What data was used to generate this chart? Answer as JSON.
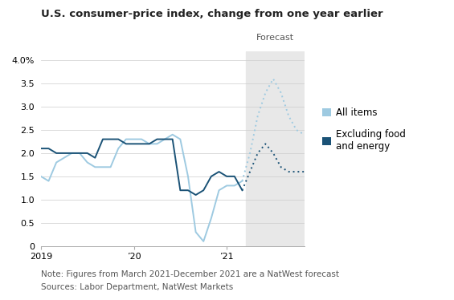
{
  "title": "U.S. consumer-price index, change from one year earlier",
  "note": "Note: Figures from March 2021-December 2021 are a NatWest forecast",
  "sources": "Sources: Labor Department, NatWest Markets",
  "forecast_label": "Forecast",
  "forecast_start": 26.5,
  "background_color": "#ffffff",
  "forecast_bg_color": "#e8e8e8",
  "all_items_color": "#9ecae1",
  "excl_color": "#1a5276",
  "legend_all_items": "All items",
  "legend_excl": "Excluding food\nand energy",
  "all_items_solid": [
    [
      0,
      1.5
    ],
    [
      1,
      1.4
    ],
    [
      2,
      1.8
    ],
    [
      3,
      1.9
    ],
    [
      4,
      2.0
    ],
    [
      5,
      2.0
    ],
    [
      6,
      1.8
    ],
    [
      7,
      1.7
    ],
    [
      8,
      1.7
    ],
    [
      9,
      1.7
    ],
    [
      10,
      2.1
    ],
    [
      11,
      2.3
    ],
    [
      12,
      2.3
    ],
    [
      13,
      2.3
    ],
    [
      14,
      2.2
    ],
    [
      15,
      2.2
    ],
    [
      16,
      2.3
    ],
    [
      17,
      2.4
    ],
    [
      18,
      2.3
    ],
    [
      19,
      1.5
    ],
    [
      20,
      0.3
    ],
    [
      21,
      0.1
    ],
    [
      22,
      0.6
    ],
    [
      23,
      1.2
    ],
    [
      24,
      1.3
    ],
    [
      25,
      1.3
    ],
    [
      26,
      1.4
    ]
  ],
  "all_items_dotted": [
    [
      26,
      1.4
    ],
    [
      27,
      2.0
    ],
    [
      28,
      2.8
    ],
    [
      29,
      3.3
    ],
    [
      30,
      3.6
    ],
    [
      31,
      3.3
    ],
    [
      32,
      2.8
    ],
    [
      33,
      2.5
    ],
    [
      34,
      2.4
    ]
  ],
  "excl_solid": [
    [
      0,
      2.1
    ],
    [
      1,
      2.1
    ],
    [
      2,
      2.0
    ],
    [
      3,
      2.0
    ],
    [
      4,
      2.0
    ],
    [
      5,
      2.0
    ],
    [
      6,
      2.0
    ],
    [
      7,
      1.9
    ],
    [
      8,
      2.3
    ],
    [
      9,
      2.3
    ],
    [
      10,
      2.3
    ],
    [
      11,
      2.2
    ],
    [
      12,
      2.2
    ],
    [
      13,
      2.2
    ],
    [
      14,
      2.2
    ],
    [
      15,
      2.3
    ],
    [
      16,
      2.3
    ],
    [
      17,
      2.3
    ],
    [
      18,
      1.2
    ],
    [
      19,
      1.2
    ],
    [
      20,
      1.1
    ],
    [
      21,
      1.2
    ],
    [
      22,
      1.5
    ],
    [
      23,
      1.6
    ],
    [
      24,
      1.5
    ],
    [
      25,
      1.5
    ],
    [
      26,
      1.2
    ]
  ],
  "excl_dotted": [
    [
      26,
      1.2
    ],
    [
      27,
      1.6
    ],
    [
      28,
      2.0
    ],
    [
      29,
      2.2
    ],
    [
      30,
      2.0
    ],
    [
      31,
      1.7
    ],
    [
      32,
      1.6
    ],
    [
      33,
      1.6
    ],
    [
      34,
      1.6
    ]
  ],
  "xlim": [
    0,
    34
  ],
  "ylim": [
    0,
    4.2
  ],
  "yticks": [
    0,
    0.5,
    1.0,
    1.5,
    2.0,
    2.5,
    3.0,
    3.5,
    4.0
  ],
  "title_fontsize": 9.5,
  "note_fontsize": 7.5,
  "legend_fontsize": 8.5
}
